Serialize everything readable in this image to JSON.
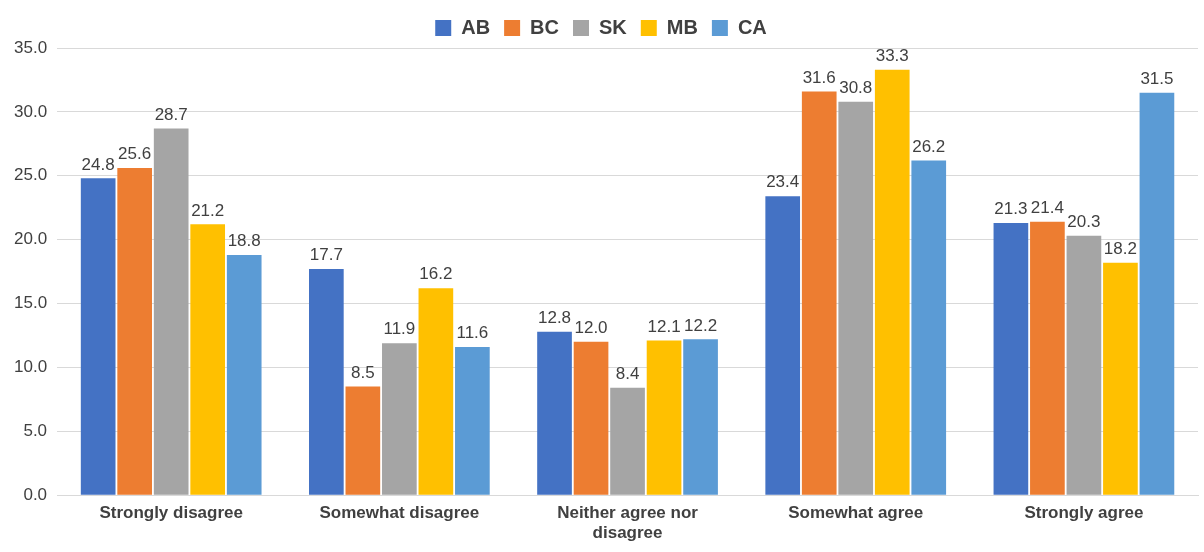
{
  "chart_data": {
    "type": "bar",
    "categories": [
      "Strongly disagree",
      "Somewhat disagree",
      "Neither agree nor disagree",
      "Somewhat agree",
      "Strongly agree"
    ],
    "series": [
      {
        "name": "AB",
        "color": "#4472c4",
        "values": [
          24.8,
          17.7,
          12.8,
          23.4,
          21.3
        ],
        "value_labels": [
          "24.8",
          "17.7",
          "12.8",
          "23.4",
          "21.3"
        ]
      },
      {
        "name": "BC",
        "color": "#ed7d31",
        "values": [
          25.6,
          8.5,
          12.0,
          31.6,
          21.4
        ],
        "value_labels": [
          "25.6",
          "8.5",
          "12.0",
          "31.6",
          "21.4"
        ]
      },
      {
        "name": "SK",
        "color": "#a5a5a5",
        "values": [
          28.7,
          11.9,
          8.4,
          30.8,
          20.3
        ],
        "value_labels": [
          "28.7",
          "11.9",
          "8.4",
          "30.8",
          "20.3"
        ]
      },
      {
        "name": "MB",
        "color": "#ffc000",
        "values": [
          21.2,
          16.2,
          12.1,
          33.3,
          18.2
        ],
        "value_labels": [
          "21.2",
          "16.2",
          "12.1",
          "33.3",
          "18.2"
        ]
      },
      {
        "name": "CA",
        "color": "#5b9bd5",
        "values": [
          18.8,
          11.6,
          12.2,
          26.2,
          31.5
        ],
        "value_labels": [
          "18.8",
          "11.6",
          "12.2",
          "26.2",
          "31.5"
        ]
      }
    ],
    "ylim": [
      0,
      35
    ],
    "yticks": [
      {
        "value": 0,
        "label": "0.0"
      },
      {
        "value": 5,
        "label": "5.0"
      },
      {
        "value": 10,
        "label": "10.0"
      },
      {
        "value": 15,
        "label": "15.0"
      },
      {
        "value": 20,
        "label": "20.0"
      },
      {
        "value": 25,
        "label": "25.0"
      },
      {
        "value": 30,
        "label": "30.0"
      },
      {
        "value": 35,
        "label": "35.0"
      }
    ],
    "grid": "y",
    "legend": "top"
  }
}
